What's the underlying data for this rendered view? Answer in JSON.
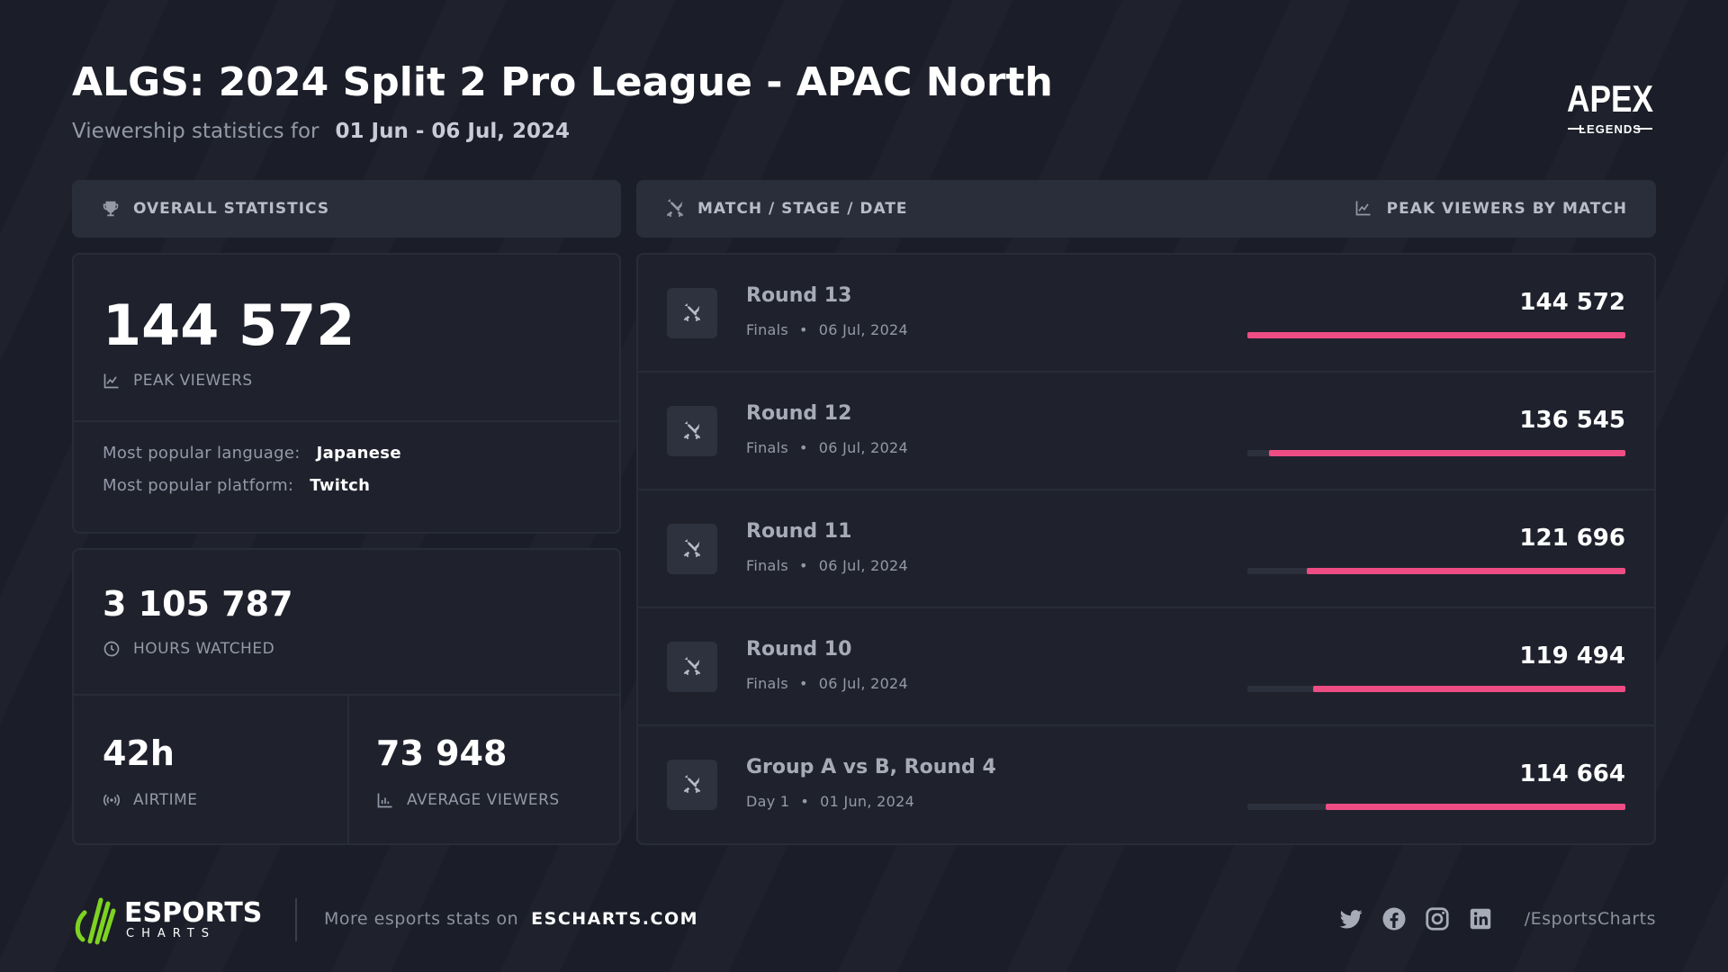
{
  "header": {
    "title": "ALGS: 2024 Split 2 Pro League - APAC North",
    "subtitle_prefix": "Viewership statistics for",
    "date_range": "01 Jun - 06 Jul, 2024",
    "brand_logo": "APEX",
    "brand_logo_sub": "LEGENDS"
  },
  "left_panel": {
    "heading": "OVERALL STATISTICS",
    "peak_viewers": {
      "value": "144 572",
      "label": "PEAK VIEWERS"
    },
    "popular_language": {
      "label": "Most popular language:",
      "value": "Japanese"
    },
    "popular_platform": {
      "label": "Most popular platform:",
      "value": "Twitch"
    },
    "hours_watched": {
      "value": "3 105 787",
      "label": "HOURS WATCHED"
    },
    "airtime": {
      "value": "42h",
      "label": "AIRTIME"
    },
    "average_viewers": {
      "value": "73 948",
      "label": "AVERAGE VIEWERS"
    }
  },
  "right_panel": {
    "heading_left": "MATCH / STAGE / DATE",
    "heading_right": "PEAK VIEWERS BY MATCH",
    "matches": [
      {
        "name": "Round 13",
        "stage": "Finals",
        "date": "06 Jul, 2024",
        "peak": "144 572",
        "fraction": 1.0
      },
      {
        "name": "Round 12",
        "stage": "Finals",
        "date": "06 Jul, 2024",
        "peak": "136 545",
        "fraction": 0.944
      },
      {
        "name": "Round 11",
        "stage": "Finals",
        "date": "06 Jul, 2024",
        "peak": "121 696",
        "fraction": 0.842
      },
      {
        "name": "Round 10",
        "stage": "Finals",
        "date": "06 Jul, 2024",
        "peak": "119 494",
        "fraction": 0.827
      },
      {
        "name": "Group A vs B, Round 4",
        "stage": "Day 1",
        "date": "01 Jun, 2024",
        "peak": "114 664",
        "fraction": 0.793
      }
    ]
  },
  "footer": {
    "logo_main": "ESPORTS",
    "logo_sub": "CHARTS",
    "more_text": "More esports stats on",
    "site": "ESCHARTS.COM",
    "handle": "/EsportsCharts",
    "social_icons": [
      "twitter-icon",
      "facebook-icon",
      "instagram-icon",
      "linkedin-icon"
    ]
  },
  "colors": {
    "background": "#1b1e28",
    "bar_accent": "#ee4d84",
    "logo_green": "#7ed321"
  }
}
